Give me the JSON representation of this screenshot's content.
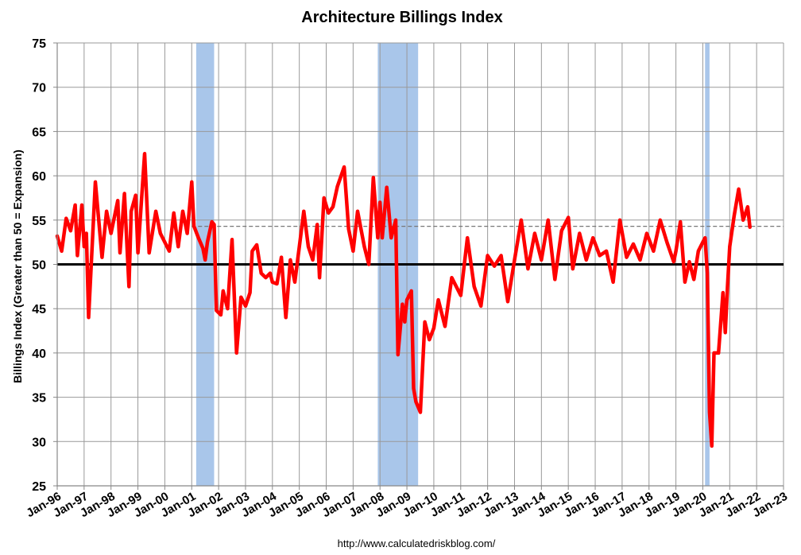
{
  "chart_data": {
    "type": "line",
    "title": "Architecture Billings Index",
    "ylabel": "Billings Index (Greater than 50 = Expansion)",
    "xlabel": "",
    "ylim": [
      25,
      75
    ],
    "yticks": [
      25,
      30,
      35,
      40,
      45,
      50,
      55,
      60,
      65,
      70,
      75
    ],
    "xlim": [
      "1996-01",
      "2023-01"
    ],
    "xticks": [
      "Jan-96",
      "Jan-97",
      "Jan-98",
      "Jan-99",
      "Jan-00",
      "Jan-01",
      "Jan-02",
      "Jan-03",
      "Jan-04",
      "Jan-05",
      "Jan-06",
      "Jan-07",
      "Jan-08",
      "Jan-09",
      "Jan-10",
      "Jan-11",
      "Jan-12",
      "Jan-13",
      "Jan-14",
      "Jan-15",
      "Jan-16",
      "Jan-17",
      "Jan-18",
      "Jan-19",
      "Jan-20",
      "Jan-21",
      "Jan-22",
      "Jan-23"
    ],
    "grid": true,
    "source_note": "http://www.calculatedriskblog.com/",
    "colors": {
      "series": "#ff0000",
      "recession": "#a9c6ea",
      "grid": "#999999",
      "baseline": "#000000",
      "reference": "#777777"
    },
    "recessions": [
      [
        "2001-03",
        "2001-11"
      ],
      [
        "2007-12",
        "2009-06"
      ],
      [
        "2020-02",
        "2020-04"
      ]
    ],
    "reference_lines": [
      {
        "value": 50,
        "style": "solid"
      },
      {
        "value": 54.3,
        "style": "dashed",
        "from": "2001-01"
      }
    ],
    "series": [
      {
        "x": [
          "1996-01",
          "1996-03",
          "1996-05",
          "1996-07",
          "1996-09",
          "1996-10",
          "1996-12",
          "1997-01",
          "1997-02",
          "1997-03",
          "1997-06",
          "1997-09",
          "1997-11",
          "1998-01",
          "1998-04",
          "1998-05",
          "1998-07",
          "1998-09",
          "1998-10",
          "1998-12",
          "1999-01",
          "1999-04",
          "1999-06",
          "1999-09",
          "1999-11",
          "2000-01",
          "2000-03",
          "2000-05",
          "2000-07",
          "2000-09",
          "2000-11",
          "2001-01",
          "2001-02",
          "2001-04",
          "2001-06",
          "2001-07",
          "2001-08",
          "2001-10",
          "2001-11",
          "2001-12",
          "2002-02",
          "2002-03",
          "2002-05",
          "2002-07",
          "2002-09",
          "2002-11",
          "2003-01",
          "2003-03",
          "2003-04",
          "2003-06",
          "2003-08",
          "2003-10",
          "2003-12",
          "2004-01",
          "2004-03",
          "2004-05",
          "2004-07",
          "2004-09",
          "2004-11",
          "2005-01",
          "2005-03",
          "2005-05",
          "2005-07",
          "2005-09",
          "2005-10",
          "2005-12",
          "2006-02",
          "2006-04",
          "2006-06",
          "2006-09",
          "2006-11",
          "2007-01",
          "2007-03",
          "2007-06",
          "2007-08",
          "2007-10",
          "2007-12",
          "2008-01",
          "2008-02",
          "2008-04",
          "2008-06",
          "2008-08",
          "2008-09",
          "2008-11",
          "2008-12",
          "2009-01",
          "2009-03",
          "2009-04",
          "2009-05",
          "2009-07",
          "2009-09",
          "2009-11",
          "2010-01",
          "2010-03",
          "2010-06",
          "2010-09",
          "2011-01",
          "2011-04",
          "2011-07",
          "2011-10",
          "2012-01",
          "2012-04",
          "2012-07",
          "2012-10",
          "2013-01",
          "2013-04",
          "2013-07",
          "2013-10",
          "2014-01",
          "2014-04",
          "2014-07",
          "2014-10",
          "2015-01",
          "2015-03",
          "2015-06",
          "2015-09",
          "2015-12",
          "2016-03",
          "2016-06",
          "2016-09",
          "2016-12",
          "2017-03",
          "2017-06",
          "2017-09",
          "2017-12",
          "2018-03",
          "2018-06",
          "2018-09",
          "2018-12",
          "2019-01",
          "2019-03",
          "2019-05",
          "2019-07",
          "2019-09",
          "2019-11",
          "2020-01",
          "2020-02",
          "2020-03",
          "2020-04",
          "2020-05",
          "2020-06",
          "2020-08",
          "2020-10",
          "2020-11",
          "2020-12",
          "2021-01",
          "2021-03",
          "2021-05",
          "2021-07",
          "2021-09",
          "2021-10"
        ],
        "values": [
          53.2,
          51.5,
          55.2,
          53.8,
          56.7,
          51.0,
          56.7,
          52.0,
          53.5,
          44.0,
          59.3,
          50.8,
          56.0,
          53.5,
          57.2,
          51.3,
          58.0,
          47.5,
          56.0,
          57.8,
          51.3,
          62.5,
          51.3,
          56.0,
          53.5,
          52.5,
          51.5,
          55.8,
          52.0,
          56.0,
          53.5,
          59.3,
          54.3,
          53.0,
          51.8,
          50.5,
          52.5,
          54.8,
          54.5,
          44.8,
          44.3,
          47.0,
          45.0,
          52.8,
          40.0,
          46.3,
          45.3,
          46.8,
          51.5,
          52.2,
          49.0,
          48.5,
          49.0,
          48.0,
          47.8,
          50.8,
          44.0,
          50.5,
          48.0,
          52.0,
          56.0,
          52.0,
          50.5,
          54.5,
          48.5,
          57.5,
          55.8,
          56.5,
          58.8,
          61.0,
          54.0,
          51.5,
          56.0,
          52.0,
          50.0,
          59.8,
          53.0,
          57.0,
          53.0,
          58.7,
          53.0,
          55.0,
          39.8,
          45.5,
          43.5,
          46.0,
          47.0,
          36.0,
          34.5,
          33.3,
          43.5,
          41.5,
          42.8,
          46.0,
          43.0,
          48.5,
          46.5,
          53.0,
          47.5,
          45.3,
          51.0,
          49.8,
          51.0,
          45.8,
          50.5,
          55.0,
          49.5,
          53.5,
          50.5,
          55.0,
          48.3,
          53.8,
          55.3,
          49.5,
          53.5,
          50.5,
          53.0,
          51.0,
          51.5,
          48.0,
          55.0,
          50.8,
          52.3,
          50.5,
          53.5,
          51.5,
          55.0,
          52.5,
          50.3,
          51.5,
          54.8,
          48.0,
          50.3,
          48.3,
          51.5,
          52.5,
          53.0,
          49.0,
          33.3,
          29.5,
          40.0,
          40.0,
          46.8,
          42.3,
          47.5,
          52.0,
          55.5,
          58.5,
          55.0,
          56.5,
          54.2
        ]
      }
    ]
  }
}
